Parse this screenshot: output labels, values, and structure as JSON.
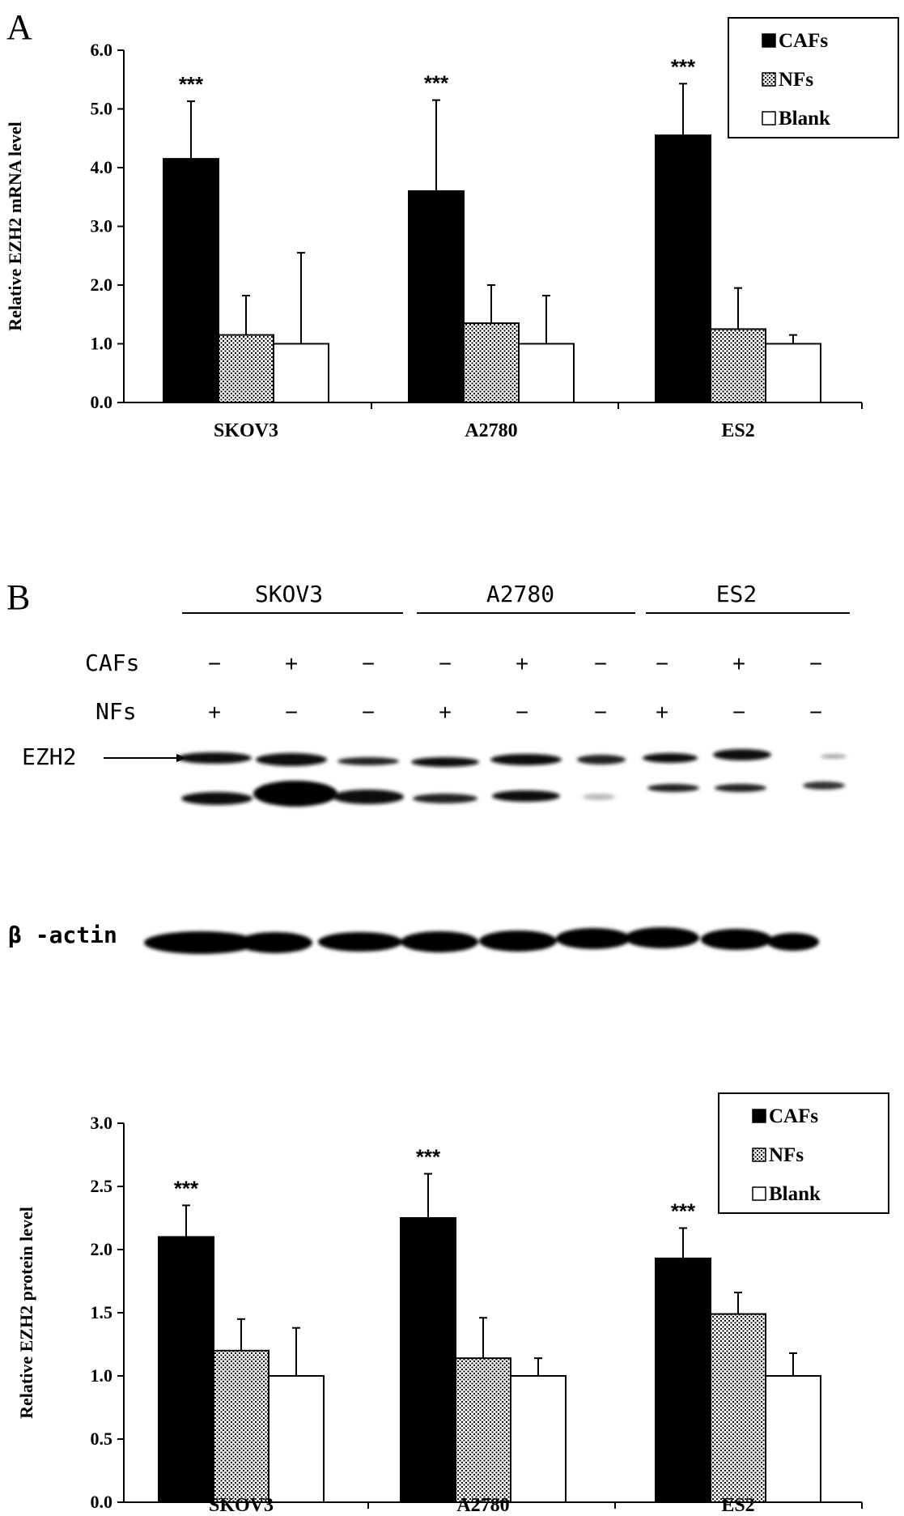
{
  "panels": {
    "a_letter": "A",
    "b_letter": "B"
  },
  "blot": {
    "cell_lines": [
      "SKOV3",
      "A2780",
      "ES2"
    ],
    "row_labels": {
      "cafs": "CAFs",
      "nfs": "NFs"
    },
    "cafs_signs": [
      "−",
      "+",
      "−",
      "−",
      "+",
      "−",
      "−",
      "+",
      "−"
    ],
    "nfs_signs": [
      "+",
      "−",
      "−",
      "+",
      "−",
      "−",
      "+",
      "−",
      "−"
    ],
    "ezh2_label": "EZH2",
    "actin_label": "β -actin"
  },
  "chart_data": [
    {
      "type": "bar",
      "title": "",
      "xlabel": "",
      "ylabel": "Relative EZH2 mRNA level",
      "ylim": [
        0,
        6
      ],
      "yticks": [
        "0.0",
        "1.0",
        "2.0",
        "3.0",
        "4.0",
        "5.0",
        "6.0"
      ],
      "categories": [
        "SKOV3",
        "A2780",
        "ES2"
      ],
      "series": [
        {
          "name": "CAFs",
          "values": [
            4.15,
            3.6,
            4.55
          ],
          "errors": [
            0.98,
            1.55,
            0.88
          ],
          "fill": "#000000"
        },
        {
          "name": "NFs",
          "values": [
            1.15,
            1.35,
            1.25
          ],
          "errors": [
            0.67,
            0.65,
            0.7
          ],
          "fill": "dots"
        },
        {
          "name": "Blank",
          "values": [
            1.0,
            1.0,
            1.0
          ],
          "errors": [
            1.55,
            0.82,
            0.15
          ],
          "fill": "#ffffff"
        }
      ],
      "significance": [
        "***",
        "***",
        "***"
      ],
      "legend": [
        "CAFs",
        "NFs",
        "Blank"
      ],
      "legend_position": "top-right",
      "grid": false
    },
    {
      "type": "bar",
      "title": "",
      "xlabel": "",
      "ylabel": "Relative EZH2 protein level",
      "ylim": [
        0,
        3
      ],
      "yticks": [
        "0.0",
        "0.5",
        "1.0",
        "1.5",
        "2.0",
        "2.5",
        "3.0"
      ],
      "categories": [
        "SKOV3",
        "A2780",
        "ES2"
      ],
      "series": [
        {
          "name": "CAFs",
          "values": [
            2.1,
            2.25,
            1.93
          ],
          "errors": [
            0.25,
            0.35,
            0.24
          ],
          "fill": "#000000"
        },
        {
          "name": "NFs",
          "values": [
            1.2,
            1.14,
            1.49
          ],
          "errors": [
            0.25,
            0.32,
            0.17
          ],
          "fill": "dots"
        },
        {
          "name": "Blank",
          "values": [
            1.0,
            1.0,
            1.0
          ],
          "errors": [
            0.38,
            0.14,
            0.18
          ],
          "fill": "#ffffff"
        }
      ],
      "significance": [
        "***",
        "***",
        "***"
      ],
      "legend": [
        "CAFs",
        "NFs",
        "Blank"
      ],
      "legend_position": "top-right",
      "grid": false
    }
  ]
}
